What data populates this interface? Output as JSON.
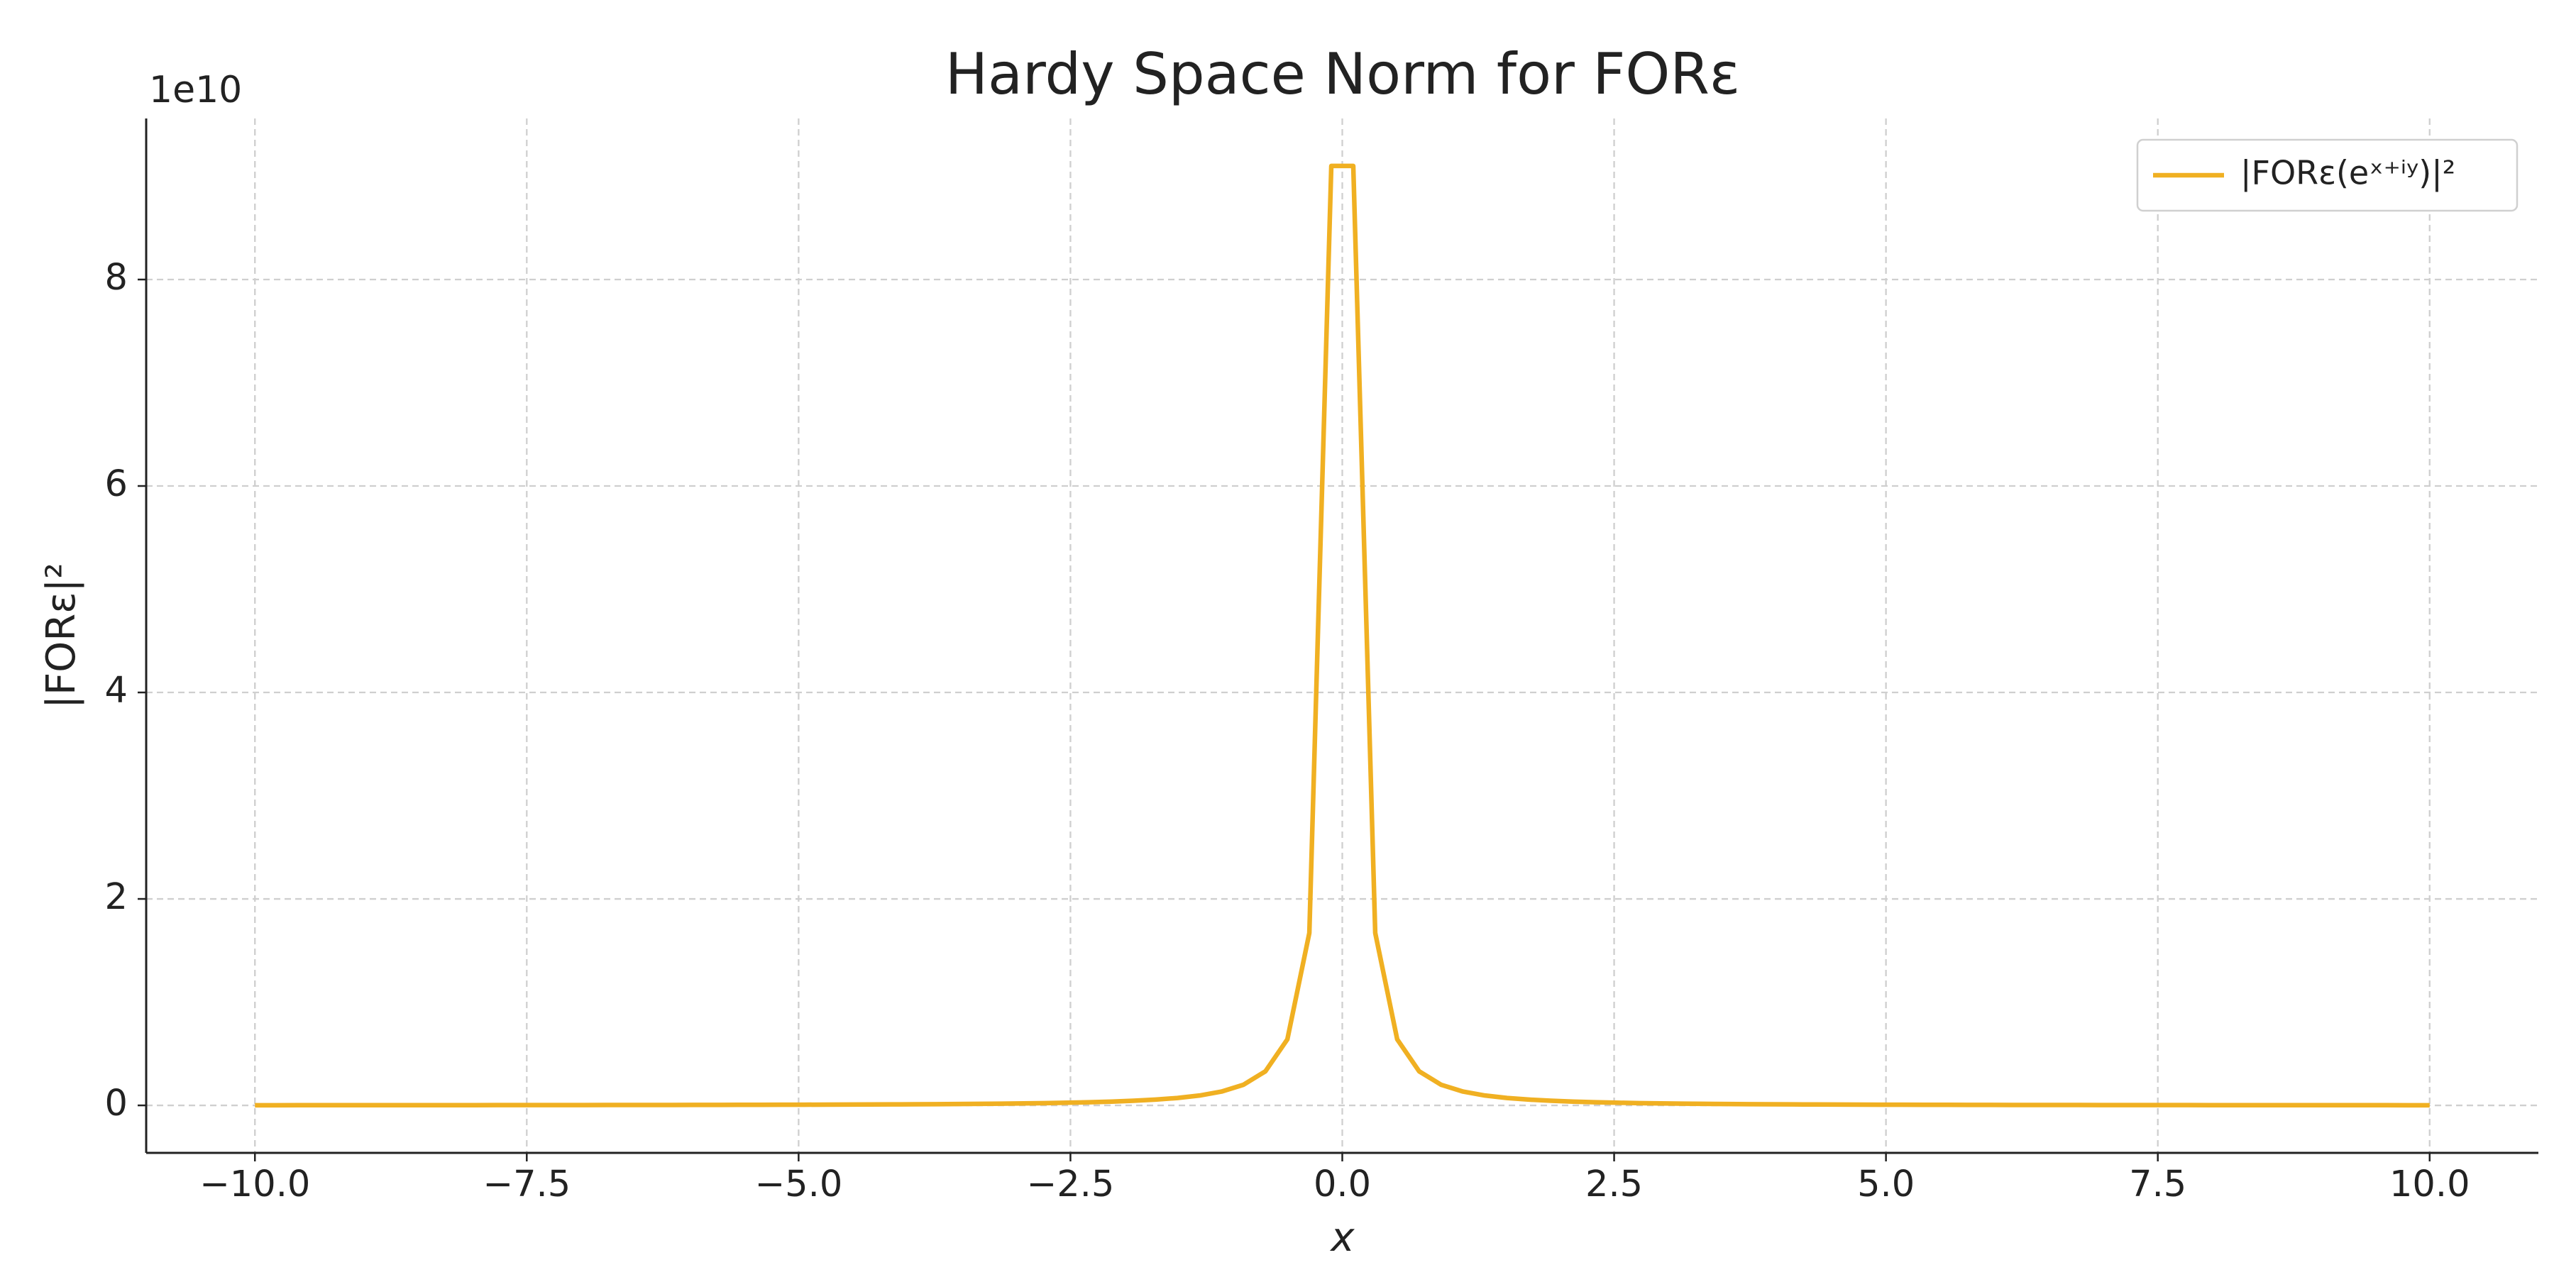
{
  "chart_data": {
    "type": "line",
    "title": "Hardy Space Norm for FORε",
    "xlabel": "x",
    "ylabel": "|FORε|²",
    "y_offset_label": "1e10",
    "x": [
      -10,
      -9.798,
      -9.596,
      -9.394,
      -9.192,
      -8.99,
      -8.788,
      -8.586,
      -8.384,
      -8.182,
      -7.98,
      -7.778,
      -7.576,
      -7.374,
      -7.172,
      -6.97,
      -6.768,
      -6.566,
      -6.364,
      -6.162,
      -5.96,
      -5.758,
      -5.556,
      -5.354,
      -5.152,
      -4.949,
      -4.747,
      -4.545,
      -4.343,
      -4.141,
      -3.939,
      -3.737,
      -3.535,
      -3.333,
      -3.131,
      -2.929,
      -2.727,
      -2.525,
      -2.323,
      -2.121,
      -1.919,
      -1.717,
      -1.515,
      -1.313,
      -1.111,
      -0.909,
      -0.707,
      -0.505,
      -0.303,
      -0.101,
      0.101,
      0.303,
      0.505,
      0.707,
      0.909,
      1.111,
      1.313,
      1.515,
      1.717,
      1.919,
      2.121,
      2.323,
      2.525,
      2.727,
      2.929,
      3.131,
      3.333,
      3.535,
      3.737,
      3.939,
      4.141,
      4.343,
      4.545,
      4.747,
      4.949,
      5.152,
      5.354,
      5.556,
      5.758,
      5.96,
      6.162,
      6.364,
      6.566,
      6.768,
      6.97,
      7.172,
      7.374,
      7.576,
      7.778,
      7.98,
      8.182,
      8.384,
      8.586,
      8.788,
      8.99,
      9.192,
      9.394,
      9.596,
      9.798,
      10
    ],
    "series": [
      {
        "name": "|FORε(eˣ⁺ⁱʸ)|²",
        "color": "#f0b022",
        "values": [
          0.0017,
          0.0017,
          0.0018,
          0.0019,
          0.002,
          0.002,
          0.0021,
          0.0022,
          0.0023,
          0.0025,
          0.0026,
          0.0027,
          0.0029,
          0.003,
          0.0032,
          0.0034,
          0.0036,
          0.0038,
          0.0041,
          0.0043,
          0.0046,
          0.005,
          0.0053,
          0.0058,
          0.0062,
          0.0067,
          0.0073,
          0.008,
          0.0087,
          0.0096,
          0.0106,
          0.0118,
          0.0132,
          0.0149,
          0.0168,
          0.0192,
          0.0222,
          0.0259,
          0.0306,
          0.0367,
          0.0448,
          0.056,
          0.0719,
          0.0957,
          0.1337,
          0.2,
          0.33,
          0.64,
          1.67,
          9.1,
          9.1,
          1.67,
          0.64,
          0.33,
          0.2,
          0.1337,
          0.0957,
          0.0719,
          0.056,
          0.0448,
          0.0367,
          0.0306,
          0.0259,
          0.0222,
          0.0192,
          0.0168,
          0.0149,
          0.0132,
          0.0118,
          0.0106,
          0.0096,
          0.0087,
          0.008,
          0.0073,
          0.0067,
          0.0062,
          0.0058,
          0.0053,
          0.005,
          0.0046,
          0.0043,
          0.0041,
          0.0038,
          0.0036,
          0.0034,
          0.0032,
          0.003,
          0.0029,
          0.0027,
          0.0026,
          0.0025,
          0.0023,
          0.0022,
          0.0021,
          0.002,
          0.002,
          0.0019,
          0.0018,
          0.0017,
          0.0017
        ]
      }
    ],
    "xlim": [
      -11,
      11
    ],
    "xticks": [
      {
        "value": -10,
        "label": "−10.0"
      },
      {
        "value": -7.5,
        "label": "−7.5"
      },
      {
        "value": -5,
        "label": "−5.0"
      },
      {
        "value": -2.5,
        "label": "−2.5"
      },
      {
        "value": 0,
        "label": "0.0"
      },
      {
        "value": 2.5,
        "label": "2.5"
      },
      {
        "value": 5,
        "label": "5.0"
      },
      {
        "value": 7.5,
        "label": "7.5"
      },
      {
        "value": 10,
        "label": "10.0"
      }
    ],
    "ylim": [
      -0.46,
      9.56
    ],
    "yticks": [
      0,
      2,
      4,
      6,
      8
    ],
    "grid": true,
    "legend": "upper right"
  }
}
